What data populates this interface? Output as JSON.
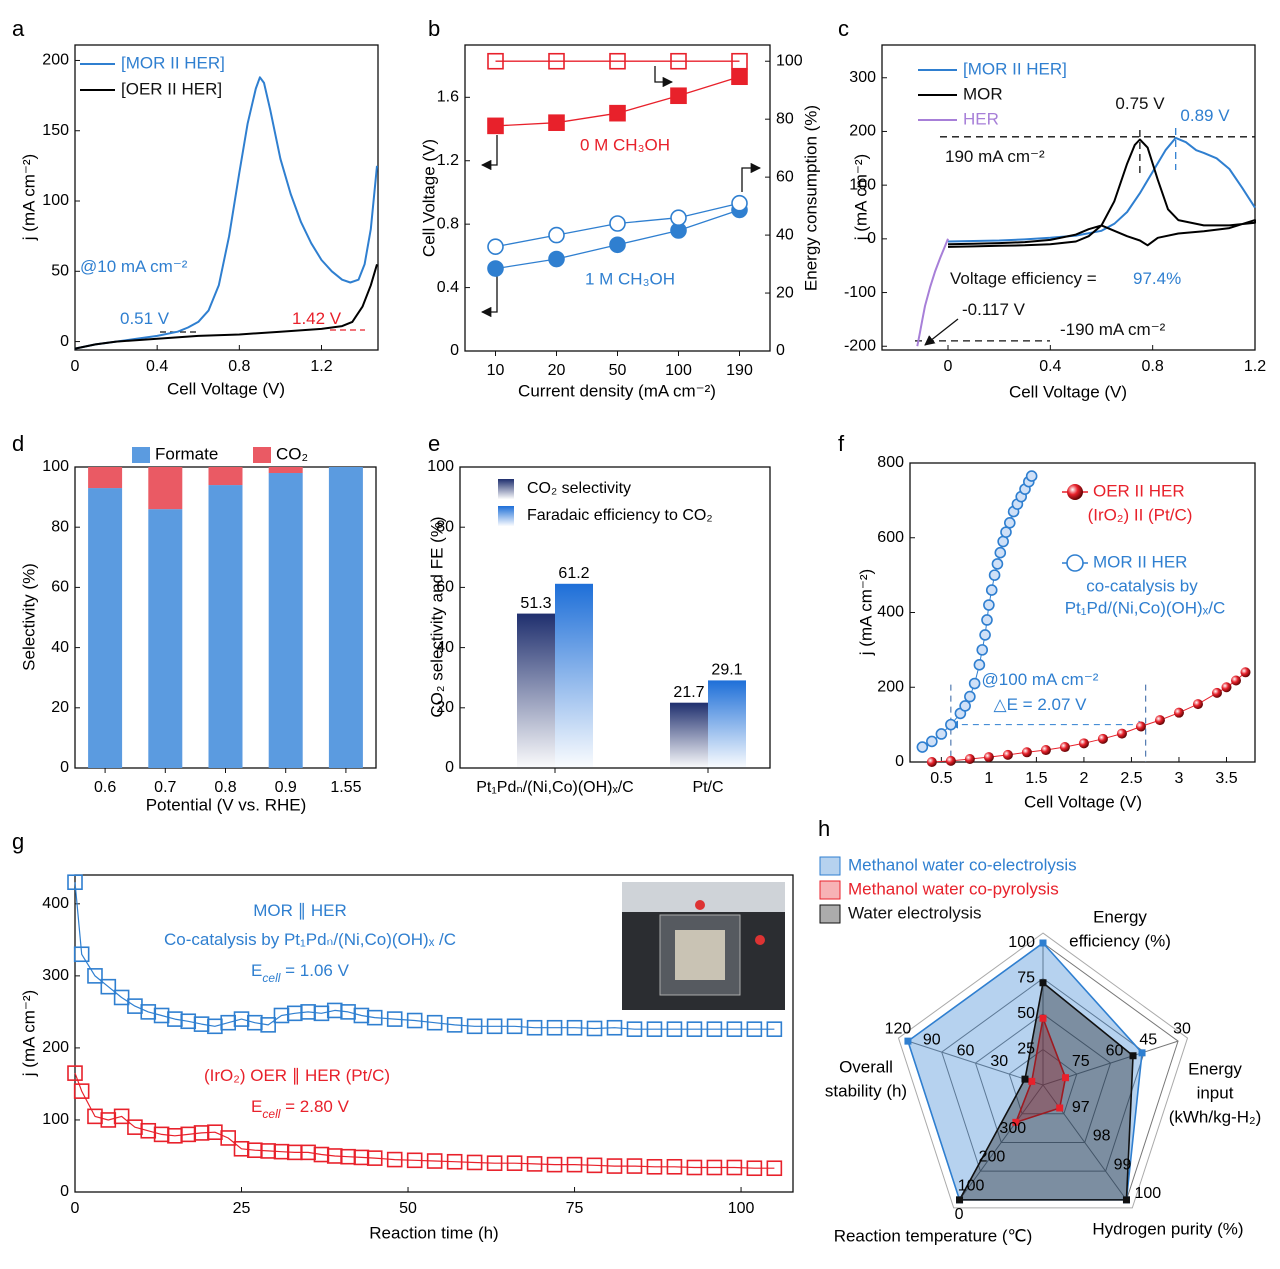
{
  "chart_data": [
    {
      "panel": "a",
      "type": "line",
      "xlabel": "Cell Voltage (V)",
      "ylabel": "j (mA cm⁻²)",
      "xlim": [
        0,
        1.475
      ],
      "ylim": [
        -6,
        211
      ],
      "xticks": [
        0,
        0.4,
        0.8,
        1.2
      ],
      "yticks": [
        0,
        50,
        100,
        150,
        200
      ],
      "series": [
        {
          "name": "[MOR II HER]",
          "color": "#2f7fd0",
          "x": [
            0,
            0.1,
            0.2,
            0.3,
            0.4,
            0.5,
            0.55,
            0.6,
            0.65,
            0.7,
            0.75,
            0.8,
            0.84,
            0.88,
            0.9,
            0.92,
            0.95,
            1.0,
            1.05,
            1.1,
            1.15,
            1.2,
            1.25,
            1.3,
            1.34,
            1.38,
            1.41,
            1.44,
            1.47
          ],
          "values": [
            -5,
            -2,
            0,
            2,
            4,
            7,
            10,
            14,
            22,
            40,
            75,
            120,
            155,
            180,
            188,
            184,
            165,
            130,
            105,
            85,
            70,
            58,
            50,
            44,
            42,
            44,
            55,
            80,
            125
          ]
        },
        {
          "name": "[OER II HER]",
          "color": "#000000",
          "x": [
            0,
            0.1,
            0.2,
            0.4,
            0.6,
            0.8,
            1.0,
            1.2,
            1.3,
            1.35,
            1.4,
            1.44,
            1.47
          ],
          "values": [
            -5,
            -2,
            0,
            2,
            4,
            5,
            7,
            9,
            11,
            14,
            25,
            40,
            55
          ]
        }
      ],
      "annotations": [
        {
          "text": "@10 mA cm⁻²",
          "color": "#2f7fd0"
        },
        {
          "text": "0.51 V",
          "color": "#2f7fd0"
        },
        {
          "text": "1.42 V",
          "color": "#e8212b"
        }
      ]
    },
    {
      "panel": "b",
      "type": "line",
      "xlabel": "Current density (mA cm⁻²)",
      "ylabel": "Cell Voltage (V)",
      "y2label": "Energy consumption (%)",
      "categories": [
        "10",
        "20",
        "50",
        "100",
        "190"
      ],
      "ylim": [
        0,
        1.93
      ],
      "yticks": [
        0,
        0.4,
        0.8,
        1.2,
        1.6
      ],
      "y2lim": [
        0,
        105.6
      ],
      "y2ticks": [
        0,
        20,
        40,
        60,
        80,
        100
      ],
      "series": [
        {
          "name": "0 M CH₃OH",
          "color": "#e8212b",
          "marker": "square",
          "values": [
            1.42,
            1.44,
            1.5,
            1.61,
            1.73
          ]
        },
        {
          "color": "#e8212b",
          "marker": "square-open",
          "axis": "y2",
          "values": [
            100,
            100,
            100,
            100,
            100
          ]
        },
        {
          "name": "1 M CH₃OH",
          "color": "#2f7fd0",
          "marker": "circle",
          "values": [
            0.52,
            0.58,
            0.67,
            0.76,
            0.89
          ]
        },
        {
          "color": "#2f7fd0",
          "marker": "circle-open",
          "axis": "y2",
          "values": [
            36,
            40,
            44,
            46,
            51
          ]
        }
      ]
    },
    {
      "panel": "c",
      "type": "line",
      "xlabel": "Cell Voltage (V)",
      "ylabel": "j (mA cm⁻²)",
      "xlim": [
        -0.258,
        1.2
      ],
      "ylim": [
        -207,
        361
      ],
      "xticks": [
        0,
        0.4,
        0.8,
        1.2
      ],
      "yticks": [
        -200,
        -100,
        0,
        100,
        200,
        300
      ],
      "series": [
        {
          "name": "[MOR II HER]",
          "color": "#2f7fd0",
          "x": [
            0,
            0.1,
            0.2,
            0.3,
            0.4,
            0.5,
            0.6,
            0.65,
            0.7,
            0.75,
            0.8,
            0.85,
            0.89,
            0.93,
            0.97,
            1.0,
            1.05,
            1.1,
            1.15,
            1.2
          ],
          "values": [
            -5,
            -4,
            -3,
            -1,
            2,
            6,
            15,
            28,
            50,
            85,
            125,
            165,
            188,
            180,
            165,
            160,
            150,
            130,
            95,
            58
          ]
        },
        {
          "name": "MOR",
          "color": "#000000",
          "x": [
            0,
            0.1,
            0.2,
            0.3,
            0.4,
            0.5,
            0.55,
            0.6,
            0.65,
            0.7,
            0.73,
            0.75,
            0.78,
            0.82,
            0.86,
            0.9,
            1.0,
            1.1,
            1.2,
            1.2,
            1.1,
            1.0,
            0.9,
            0.82,
            0.78,
            0.75,
            0.7,
            0.65,
            0.6,
            0.55,
            0.5,
            0.4,
            0.3,
            0.2,
            0.1,
            0
          ],
          "values": [
            -15,
            -14,
            -13,
            -12,
            -10,
            -5,
            5,
            25,
            70,
            140,
            175,
            185,
            170,
            110,
            55,
            35,
            25,
            25,
            30,
            35,
            20,
            14,
            10,
            2,
            -12,
            -3,
            5,
            15,
            25,
            18,
            8,
            -2,
            -6,
            -8,
            -9,
            -10
          ]
        },
        {
          "name": "HER",
          "color": "#a77fd8",
          "x": [
            -0.12,
            -0.11,
            -0.1,
            -0.09,
            -0.07,
            -0.05,
            -0.03,
            -0.01,
            0
          ],
          "values": [
            -200,
            -175,
            -150,
            -125,
            -90,
            -60,
            -35,
            -12,
            0
          ]
        }
      ],
      "reference_lines": {
        "h": [
          190,
          -190
        ],
        "v": [
          0.75,
          0.89
        ]
      },
      "annotations": [
        {
          "text": "0.75 V"
        },
        {
          "text": "0.89 V",
          "color": "#2f7fd0"
        },
        {
          "text": "190 mA cm⁻²"
        },
        {
          "text": "Voltage efficiency = "
        },
        {
          "text": "97.4%",
          "color": "#2f7fd0"
        },
        {
          "text": "-0.117 V"
        },
        {
          "text": "-190 mA cm⁻²"
        }
      ]
    },
    {
      "panel": "d",
      "type": "bar",
      "stacked": true,
      "xlabel": "Potential (V vs. RHE)",
      "ylabel": "Selectivity (%)",
      "categories": [
        "0.6",
        "0.7",
        "0.8",
        "0.9",
        "1.55"
      ],
      "ylim": [
        0,
        100
      ],
      "yticks": [
        0,
        20,
        40,
        60,
        80,
        100
      ],
      "series": [
        {
          "name": "Formate",
          "color": "#5b9be0",
          "values": [
            93,
            86,
            94,
            98,
            100
          ]
        },
        {
          "name": "CO₂",
          "color": "#ea5a64",
          "values": [
            7,
            14,
            6,
            2,
            0
          ]
        }
      ]
    },
    {
      "panel": "e",
      "type": "bar",
      "gradient": true,
      "ylabel": "CO₂ selectivity and FE (%)",
      "categories": [
        "Pt₁Pdₙ/(Ni,Co)(OH)ₓ/C",
        "Pt/C"
      ],
      "ylim": [
        0,
        100
      ],
      "yticks": [
        0,
        20,
        40,
        60,
        80,
        100
      ],
      "series": [
        {
          "name": "CO₂ selectivity",
          "color": "#1f2f6e",
          "values": [
            51.3,
            21.7
          ]
        },
        {
          "name": "Faradaic efficiency to CO₂",
          "color": "#1e6fd8",
          "values": [
            61.2,
            29.1
          ]
        }
      ]
    },
    {
      "panel": "f",
      "type": "line",
      "xlabel": "Cell Voltage (V)",
      "ylabel": "j (mA cm⁻²)",
      "xlim": [
        0.17,
        3.8
      ],
      "ylim": [
        0,
        800
      ],
      "xticks": [
        0.5,
        1,
        1.5,
        2,
        2.5,
        3,
        3.5
      ],
      "yticks": [
        0,
        200,
        400,
        600,
        800
      ],
      "series": [
        {
          "name": "OER II HER",
          "name_lines": [
            "(IrO₂) II (Pt/C)"
          ],
          "color": "#e8212b",
          "marker": "sphere",
          "x": [
            0.4,
            0.6,
            0.8,
            1.0,
            1.2,
            1.4,
            1.6,
            1.8,
            2.0,
            2.2,
            2.4,
            2.6,
            2.8,
            3.0,
            3.2,
            3.4,
            3.5,
            3.6,
            3.7
          ],
          "values": [
            0,
            3,
            8,
            13,
            19,
            26,
            32,
            40,
            50,
            62,
            76,
            95,
            112,
            132,
            155,
            185,
            200,
            218,
            240
          ]
        },
        {
          "name": "MOR II HER",
          "name_lines": [
            "co-catalysis by",
            "Pt₁Pd/(Ni,Co)(OH)ₓ/C"
          ],
          "color": "#2f7fd0",
          "marker": "circle-open",
          "x": [
            0.3,
            0.4,
            0.5,
            0.6,
            0.7,
            0.75,
            0.8,
            0.85,
            0.9,
            0.93,
            0.96,
            0.98,
            1.0,
            1.03,
            1.06,
            1.09,
            1.12,
            1.15,
            1.18,
            1.22,
            1.26,
            1.3,
            1.34,
            1.38,
            1.42,
            1.45
          ],
          "values": [
            40,
            55,
            75,
            100,
            130,
            150,
            175,
            210,
            260,
            300,
            340,
            380,
            420,
            460,
            500,
            530,
            560,
            590,
            615,
            640,
            670,
            690,
            710,
            730,
            750,
            765
          ]
        }
      ],
      "reference_lines": {
        "h": [
          100
        ],
        "v": [
          0.6,
          2.65
        ]
      },
      "annotations": [
        {
          "text": "@100 mA cm⁻²",
          "color": "#2f7fd0"
        },
        {
          "text": "△E = 2.07 V",
          "color": "#2f7fd0"
        }
      ]
    },
    {
      "panel": "g",
      "type": "line",
      "xlabel": "Reaction time (h)",
      "ylabel": "j (mA cm⁻²)",
      "xlim": [
        0,
        107.8
      ],
      "ylim": [
        0,
        440
      ],
      "xticks": [
        0,
        25,
        50,
        75,
        100
      ],
      "yticks": [
        0,
        100,
        200,
        300,
        400
      ],
      "series": [
        {
          "color": "#2f7fd0",
          "marker": "square-open",
          "x": [
            0,
            1,
            3,
            5,
            7,
            9,
            11,
            13,
            15,
            17,
            19,
            21,
            23,
            25,
            27,
            29,
            31,
            33,
            35,
            37,
            39,
            41,
            43,
            45,
            48,
            51,
            54,
            57,
            60,
            63,
            66,
            69,
            72,
            75,
            78,
            81,
            84,
            87,
            90,
            93,
            96,
            99,
            102,
            105
          ],
          "values": [
            430,
            330,
            300,
            285,
            270,
            258,
            250,
            245,
            240,
            237,
            233,
            230,
            235,
            240,
            235,
            232,
            245,
            248,
            250,
            248,
            252,
            250,
            245,
            242,
            240,
            238,
            235,
            232,
            230,
            230,
            230,
            228,
            228,
            228,
            227,
            228,
            226,
            226,
            226,
            226,
            226,
            226,
            226,
            226
          ]
        },
        {
          "color": "#e8212b",
          "marker": "square-open",
          "x": [
            0,
            1,
            3,
            5,
            7,
            9,
            11,
            13,
            15,
            17,
            19,
            21,
            23,
            25,
            27,
            29,
            31,
            33,
            35,
            37,
            39,
            41,
            43,
            45,
            48,
            51,
            54,
            57,
            60,
            63,
            66,
            69,
            72,
            75,
            78,
            81,
            84,
            87,
            90,
            93,
            96,
            99,
            102,
            105
          ],
          "values": [
            165,
            140,
            105,
            100,
            105,
            90,
            85,
            80,
            78,
            80,
            82,
            83,
            75,
            60,
            58,
            57,
            56,
            55,
            55,
            52,
            50,
            49,
            48,
            47,
            45,
            44,
            43,
            42,
            41,
            40,
            40,
            39,
            38,
            38,
            37,
            36,
            36,
            35,
            35,
            34,
            34,
            34,
            33,
            33
          ]
        }
      ],
      "annotations": [
        {
          "text": "MOR ∥ HER",
          "color": "#2f7fd0"
        },
        {
          "text": "Co-catalysis by Pt₁Pdₙ/(Ni,Co)(OH)ₓ /C",
          "color": "#2f7fd0"
        },
        {
          "text": "E",
          "sub": "cell",
          "rest": " = 1.06 V",
          "color": "#2f7fd0"
        },
        {
          "text": "(IrO₂) OER ∥ HER (Pt/C)",
          "color": "#e8212b"
        },
        {
          "text": "E",
          "sub": "cell",
          "rest": " = 2.80 V",
          "color": "#e8212b"
        }
      ]
    },
    {
      "panel": "h",
      "type": "radar",
      "axes": [
        {
          "label": [
            "Energy",
            "efficiency (%)"
          ],
          "lim": [
            0,
            100
          ],
          "ticks": [
            25,
            50,
            75,
            100
          ]
        },
        {
          "label": [
            "Energy",
            "input",
            "(kWh/kg-H₂)"
          ],
          "lim": [
            90,
            30
          ],
          "ticks": [
            75,
            60,
            45,
            30
          ]
        },
        {
          "label": [
            "Hydrogen purity (%)"
          ],
          "lim": [
            96,
            100
          ],
          "ticks": [
            97,
            98,
            99,
            100
          ]
        },
        {
          "label": [
            "Reaction temperature (℃)"
          ],
          "lim": [
            400,
            0
          ],
          "ticks": [
            300,
            200,
            100,
            0
          ]
        },
        {
          "label": [
            "Overall",
            "stability (h)"
          ],
          "lim": [
            0,
            120
          ],
          "ticks": [
            30,
            60,
            90,
            120
          ]
        }
      ],
      "series": [
        {
          "name": "Methanol water co-electrolysis",
          "color": "#2f7fd0",
          "values": [
            100,
            46,
            100,
            0,
            120
          ]
        },
        {
          "name": "Methanol water co-pyrolysis",
          "color": "#e8212b",
          "values": [
            47,
            80,
            96.8,
            270,
            10
          ]
        },
        {
          "name": "Water electrolysis",
          "color": "#111111",
          "values": [
            72,
            50,
            100,
            0,
            16
          ]
        }
      ]
    }
  ]
}
